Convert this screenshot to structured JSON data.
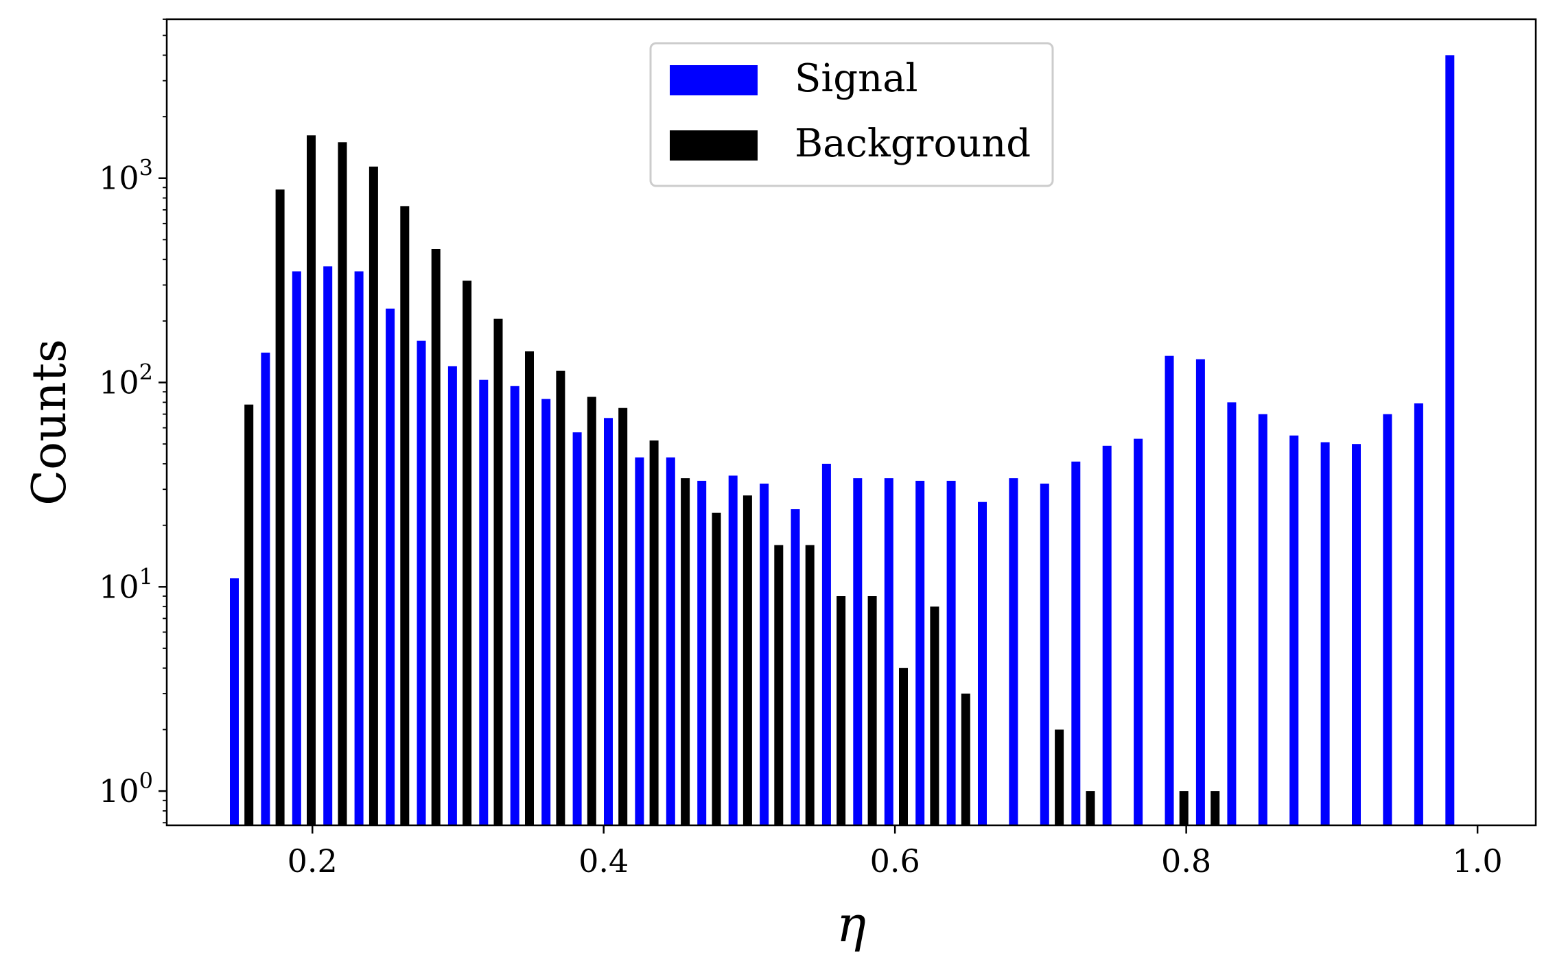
{
  "chart_data": {
    "type": "bar",
    "xlabel": "η",
    "ylabel": "Counts",
    "yscale": "log",
    "xlim": [
      0.1,
      1.04
    ],
    "ylim": [
      0.68,
      6000
    ],
    "xticks": [
      {
        "value": 0.2,
        "label": "0.2"
      },
      {
        "value": 0.4,
        "label": "0.4"
      },
      {
        "value": 0.6,
        "label": "0.6"
      },
      {
        "value": 0.8,
        "label": "0.8"
      },
      {
        "value": 1.0,
        "label": "1.0"
      }
    ],
    "yticks": [
      {
        "value": 1,
        "base": "10",
        "exp": "0"
      },
      {
        "value": 10,
        "base": "10",
        "exp": "1"
      },
      {
        "value": 100,
        "base": "10",
        "exp": "2"
      },
      {
        "value": 1000,
        "base": "10",
        "exp": "3"
      }
    ],
    "legend_position": "top-center",
    "grid": false,
    "series": [
      {
        "name": "Signal",
        "color": "#0000ff",
        "x": [
          0.1464,
          0.1678,
          0.1892,
          0.2106,
          0.232,
          0.2534,
          0.2748,
          0.2962,
          0.3176,
          0.339,
          0.3604,
          0.3818,
          0.4032,
          0.4246,
          0.446,
          0.4674,
          0.4888,
          0.5102,
          0.5316,
          0.553,
          0.5744,
          0.5958,
          0.6172,
          0.6386,
          0.66,
          0.6814,
          0.7028,
          0.7242,
          0.7456,
          0.767,
          0.7884,
          0.8098,
          0.8312,
          0.8526,
          0.874,
          0.8954,
          0.9168,
          0.9382,
          0.9596,
          0.981
        ],
        "values": [
          11,
          140,
          350,
          370,
          350,
          230,
          160,
          120,
          103,
          96,
          83,
          57,
          67,
          43,
          43,
          33,
          35,
          32,
          24,
          40,
          34,
          34,
          33,
          33,
          26,
          34,
          32,
          41,
          49,
          53,
          135,
          130,
          80,
          70,
          55,
          51,
          50,
          70,
          79,
          4000
        ]
      },
      {
        "name": "Background",
        "color": "#000000",
        "x": [
          0.1564,
          0.1778,
          0.1992,
          0.2206,
          0.242,
          0.2634,
          0.2848,
          0.3062,
          0.3276,
          0.349,
          0.3704,
          0.3918,
          0.4132,
          0.4346,
          0.456,
          0.4774,
          0.4988,
          0.5202,
          0.5416,
          0.563,
          0.5844,
          0.6058,
          0.6272,
          0.6486,
          0.7128,
          0.7342,
          0.7984,
          0.8198
        ],
        "values": [
          78,
          880,
          1620,
          1500,
          1140,
          730,
          450,
          315,
          205,
          142,
          114,
          85,
          75,
          52,
          34,
          23,
          28,
          16,
          16,
          9,
          9,
          4,
          8,
          3,
          2,
          1,
          1,
          1
        ]
      }
    ]
  }
}
